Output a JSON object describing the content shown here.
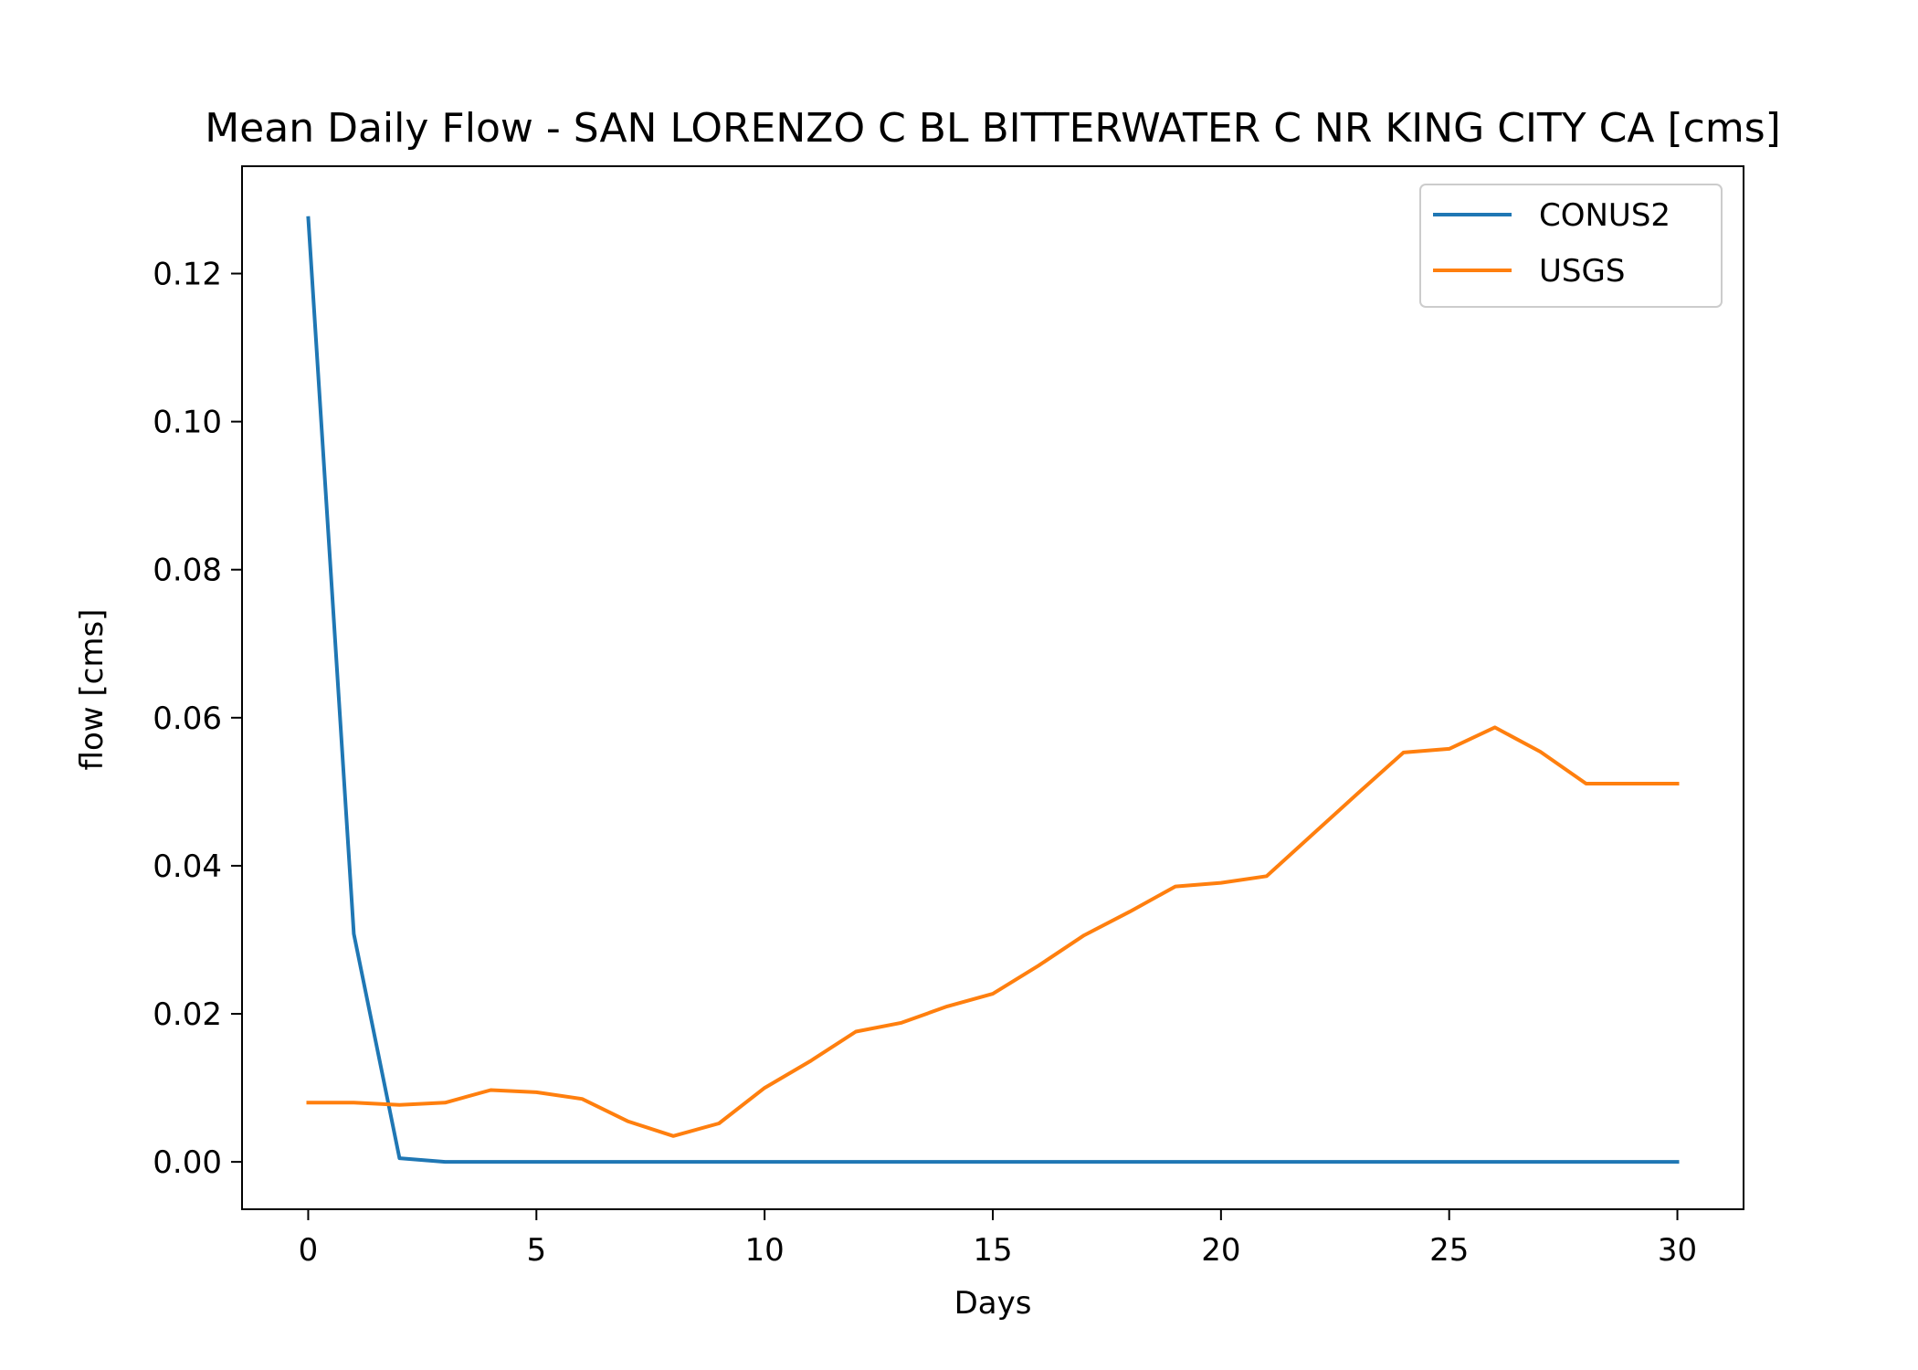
{
  "chart_data": {
    "type": "line",
    "title": "Mean Daily Flow - SAN LORENZO C BL BITTERWATER C NR KING CITY CA [cms]",
    "xlabel": "Days",
    "ylabel": "flow [cms]",
    "xlim": [
      -1.45,
      31.45
    ],
    "ylim": [
      -0.0064,
      0.1345
    ],
    "xticks": [
      0,
      5,
      10,
      15,
      20,
      25,
      30
    ],
    "xtick_labels": [
      "0",
      "5",
      "10",
      "15",
      "20",
      "25",
      "30"
    ],
    "yticks": [
      0.0,
      0.02,
      0.04,
      0.06,
      0.08,
      0.1,
      0.12
    ],
    "ytick_labels": [
      "0.00",
      "0.02",
      "0.04",
      "0.06",
      "0.08",
      "0.10",
      "0.12"
    ],
    "grid": false,
    "legend_position": "top-right",
    "x": [
      0,
      1,
      2,
      3,
      4,
      5,
      6,
      7,
      8,
      9,
      10,
      11,
      12,
      13,
      14,
      15,
      16,
      17,
      18,
      19,
      20,
      21,
      22,
      23,
      24,
      25,
      26,
      27,
      28,
      29,
      30
    ],
    "series": [
      {
        "name": "CONUS2",
        "color": "#1f77b4",
        "values": [
          0.1275,
          0.0308,
          0.0005,
          0.0,
          0.0,
          0.0,
          0.0,
          0.0,
          0.0,
          0.0,
          0.0,
          0.0,
          0.0,
          0.0,
          0.0,
          0.0,
          0.0,
          0.0,
          0.0,
          0.0,
          0.0,
          0.0,
          0.0,
          0.0,
          0.0,
          0.0,
          0.0,
          0.0,
          0.0,
          0.0,
          0.0
        ]
      },
      {
        "name": "USGS",
        "color": "#ff7f0e",
        "values": [
          0.008,
          0.008,
          0.0077,
          0.008,
          0.0097,
          0.0094,
          0.0085,
          0.0055,
          0.0035,
          0.0052,
          0.01,
          0.0136,
          0.0176,
          0.0188,
          0.021,
          0.0227,
          0.0265,
          0.0306,
          0.0338,
          0.0372,
          0.0377,
          0.0386,
          0.0442,
          0.0498,
          0.0553,
          0.0558,
          0.0587,
          0.0554,
          0.0511,
          0.0511,
          0.0511
        ]
      }
    ]
  }
}
